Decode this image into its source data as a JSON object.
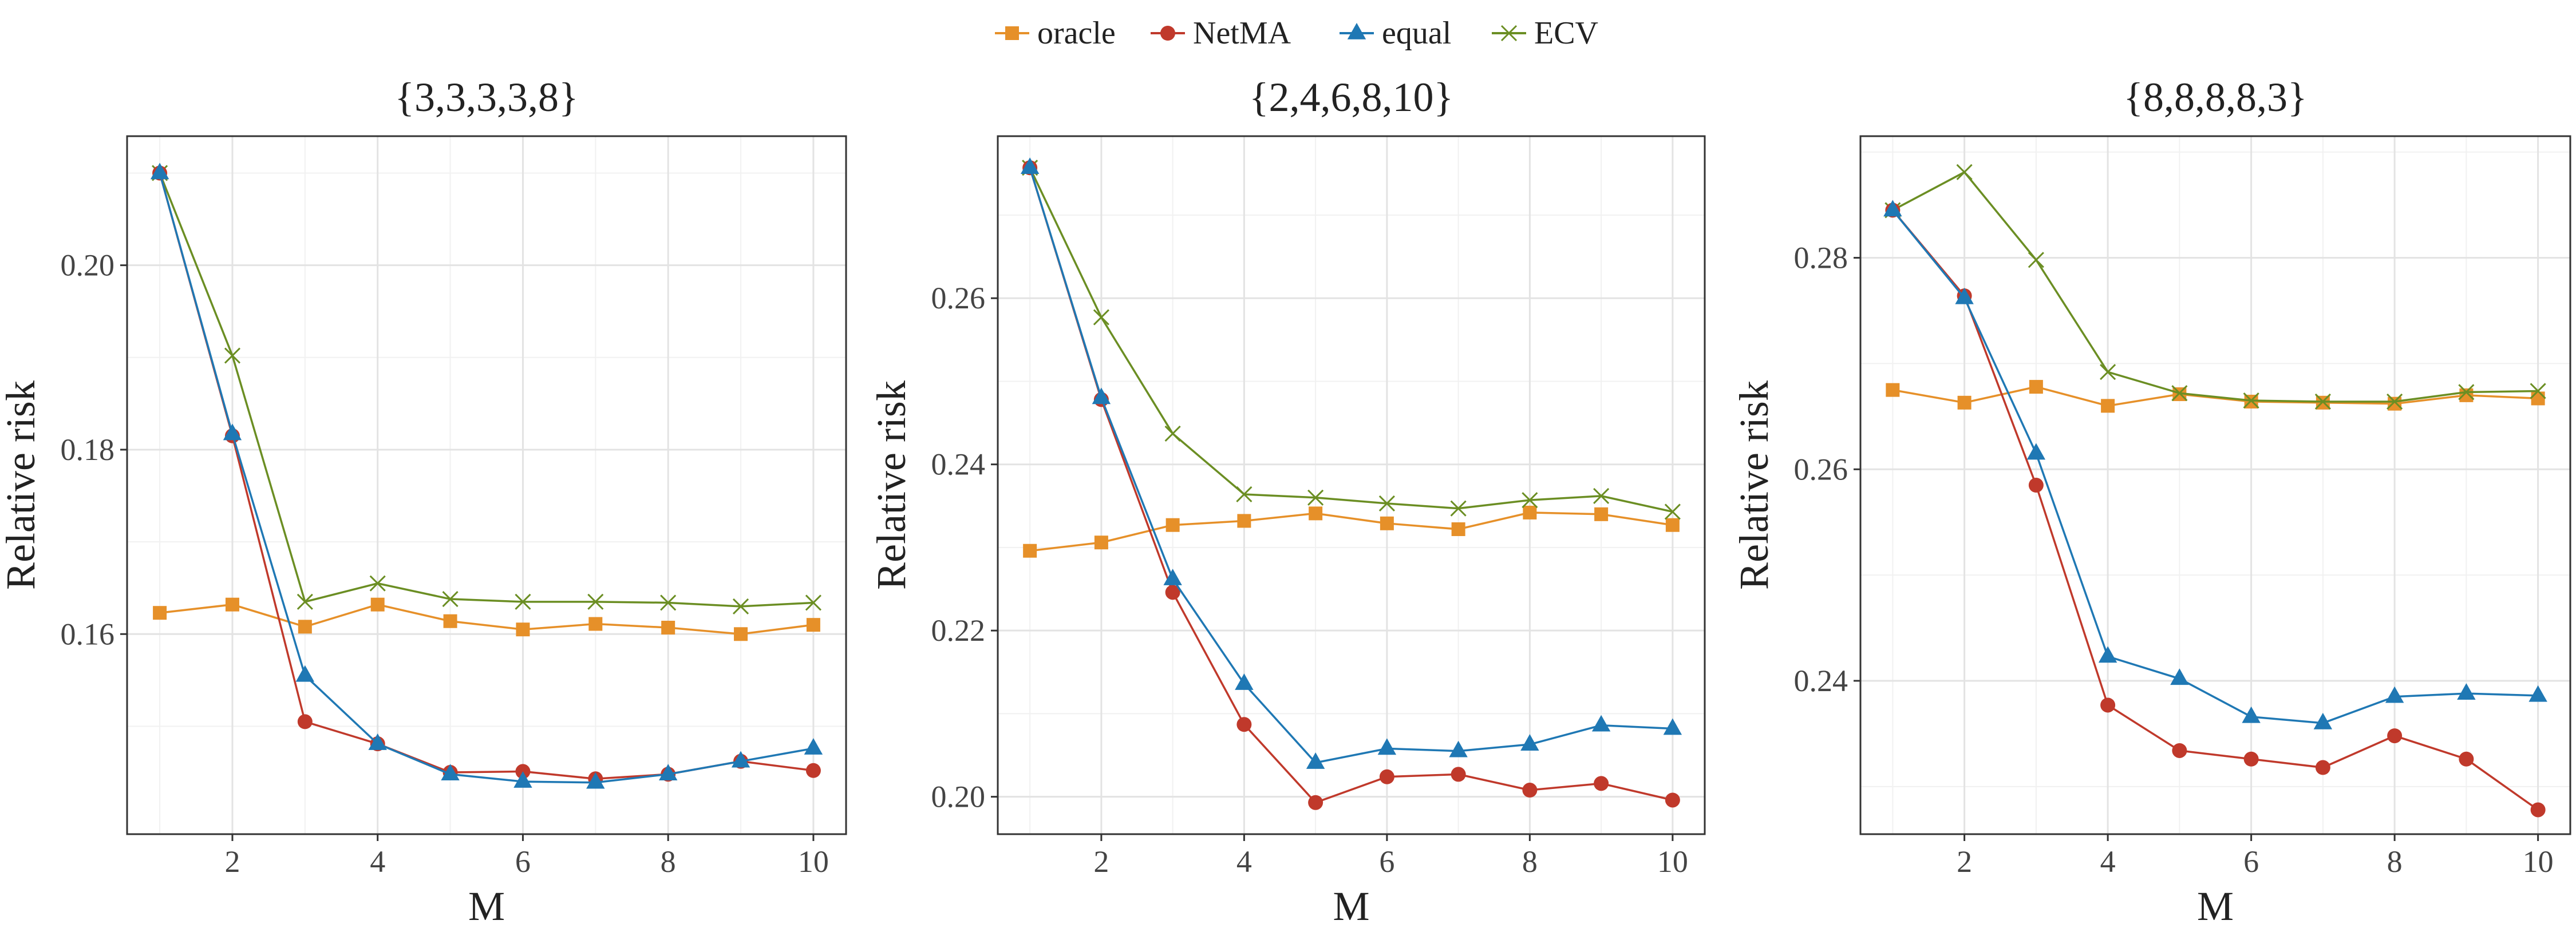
{
  "legend": {
    "items": [
      {
        "key": "oracle",
        "label": "oracle",
        "color": "#E69029",
        "marker": "square"
      },
      {
        "key": "netma",
        "label": "NetMA",
        "color": "#C0392B",
        "marker": "circle"
      },
      {
        "key": "equal",
        "label": "equal",
        "color": "#1F78B4",
        "marker": "triangle"
      },
      {
        "key": "ecv",
        "label": "ECV",
        "color": "#6B8E23",
        "marker": "cross"
      }
    ],
    "placement": "top-center"
  },
  "chart_data": [
    {
      "type": "line",
      "title": "{3,3,3,3,8}",
      "xlabel": "M",
      "ylabel": "Relative risk",
      "x": [
        1,
        2,
        3,
        4,
        5,
        6,
        7,
        8,
        9,
        10
      ],
      "xticks": [
        "2",
        "4",
        "6",
        "8",
        "10"
      ],
      "xtick_values": [
        2,
        4,
        6,
        8,
        10
      ],
      "yticks": [
        "0.16",
        "0.18",
        "0.20"
      ],
      "ytick_values": [
        0.16,
        0.18,
        0.2
      ],
      "xlim": [
        0.55,
        10.45
      ],
      "ylim": [
        0.1383,
        0.214
      ],
      "series": [
        {
          "name": "oracle",
          "values": [
            0.1623,
            0.1632,
            0.1608,
            0.1632,
            0.1614,
            0.1605,
            0.1611,
            0.1607,
            0.16,
            0.161
          ]
        },
        {
          "name": "NetMA",
          "values": [
            0.21,
            0.1815,
            0.1505,
            0.1481,
            0.145,
            0.1451,
            0.1443,
            0.1448,
            0.1462,
            0.1452
          ]
        },
        {
          "name": "equal",
          "values": [
            0.21,
            0.1817,
            0.1555,
            0.1481,
            0.1448,
            0.144,
            0.1439,
            0.1448,
            0.1462,
            0.1476
          ]
        },
        {
          "name": "ECV",
          "values": [
            0.21,
            0.1902,
            0.1635,
            0.1655,
            0.1638,
            0.1635,
            0.1635,
            0.1634,
            0.163,
            0.1634
          ]
        }
      ],
      "grid": true
    },
    {
      "type": "line",
      "title": "{2,4,6,8,10}",
      "xlabel": "M",
      "ylabel": "Relative risk",
      "x": [
        1,
        2,
        3,
        4,
        5,
        6,
        7,
        8,
        9,
        10
      ],
      "xticks": [
        "2",
        "4",
        "6",
        "8",
        "10"
      ],
      "xtick_values": [
        2,
        4,
        6,
        8,
        10
      ],
      "yticks": [
        "0.20",
        "0.22",
        "0.24",
        "0.26"
      ],
      "ytick_values": [
        0.2,
        0.22,
        0.24,
        0.26
      ],
      "xlim": [
        0.55,
        10.45
      ],
      "ylim": [
        0.1955,
        0.2795
      ],
      "series": [
        {
          "name": "oracle",
          "values": [
            0.2296,
            0.2306,
            0.2327,
            0.2332,
            0.2341,
            0.2329,
            0.2322,
            0.2342,
            0.234,
            0.2327
          ]
        },
        {
          "name": "NetMA",
          "values": [
            0.2757,
            0.2478,
            0.2246,
            0.2087,
            0.1993,
            0.2024,
            0.2027,
            0.2008,
            0.2016,
            0.1996
          ]
        },
        {
          "name": "equal",
          "values": [
            0.2757,
            0.248,
            0.2262,
            0.2136,
            0.2041,
            0.2058,
            0.2055,
            0.2063,
            0.2086,
            0.2082
          ]
        },
        {
          "name": "ECV",
          "values": [
            0.2757,
            0.2577,
            0.2437,
            0.2364,
            0.236,
            0.2353,
            0.2347,
            0.2357,
            0.2362,
            0.2343
          ]
        }
      ],
      "grid": true
    },
    {
      "type": "line",
      "title": "{8,8,8,8,3}",
      "xlabel": "M",
      "ylabel": "Relative risk",
      "x": [
        1,
        2,
        3,
        4,
        5,
        6,
        7,
        8,
        9,
        10
      ],
      "xticks": [
        "2",
        "4",
        "6",
        "8",
        "10"
      ],
      "xtick_values": [
        2,
        4,
        6,
        8,
        10
      ],
      "yticks": [
        "0.24",
        "0.26",
        "0.28"
      ],
      "ytick_values": [
        0.24,
        0.26,
        0.28
      ],
      "xlim": [
        0.55,
        10.45
      ],
      "ylim": [
        0.2255,
        0.2915
      ],
      "series": [
        {
          "name": "oracle",
          "values": [
            0.2675,
            0.2663,
            0.2678,
            0.266,
            0.2671,
            0.2664,
            0.2663,
            0.2662,
            0.267,
            0.2667
          ]
        },
        {
          "name": "NetMA",
          "values": [
            0.2845,
            0.2764,
            0.2585,
            0.2377,
            0.2334,
            0.2326,
            0.2318,
            0.2348,
            0.2326,
            0.2278
          ]
        },
        {
          "name": "equal",
          "values": [
            0.2845,
            0.2762,
            0.2615,
            0.2423,
            0.2402,
            0.2366,
            0.236,
            0.2385,
            0.2388,
            0.2386
          ]
        },
        {
          "name": "ECV",
          "values": [
            0.2845,
            0.2881,
            0.2798,
            0.2692,
            0.2672,
            0.2665,
            0.2664,
            0.2664,
            0.2673,
            0.2674
          ]
        }
      ],
      "grid": true
    }
  ]
}
